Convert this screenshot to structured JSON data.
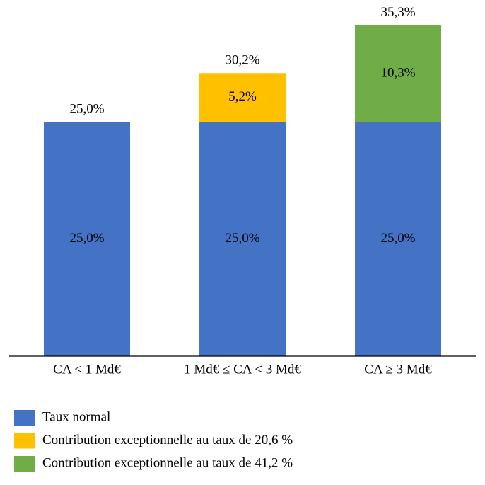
{
  "chart_data": {
    "type": "stacked_bar",
    "categories": [
      "CA < 1 Md€",
      "1 Md€ ≤ CA < 3 Md€",
      "CA ≥ 3 Md€"
    ],
    "series": [
      {
        "name": "Taux normal",
        "color": "#4472c4",
        "values": [
          25.0,
          25.0,
          25.0
        ],
        "value_labels": [
          "25,0%",
          "25,0%",
          "25,0%"
        ]
      },
      {
        "name": "Contribution exceptionnelle au taux de 20,6 %",
        "color": "#ffc000",
        "values": [
          null,
          5.2,
          null
        ],
        "value_labels": [
          null,
          "5,2%",
          null
        ]
      },
      {
        "name": "Contribution exceptionnelle au taux de 41,2 %",
        "color": "#70ad47",
        "values": [
          null,
          null,
          10.3
        ],
        "value_labels": [
          null,
          null,
          "10,3%"
        ]
      }
    ],
    "totals": [
      25.0,
      30.2,
      35.3
    ],
    "total_labels": [
      "25,0%",
      "30,2%",
      "35,3%"
    ],
    "ylim": [
      0,
      38
    ],
    "legend": "bottom-left"
  }
}
